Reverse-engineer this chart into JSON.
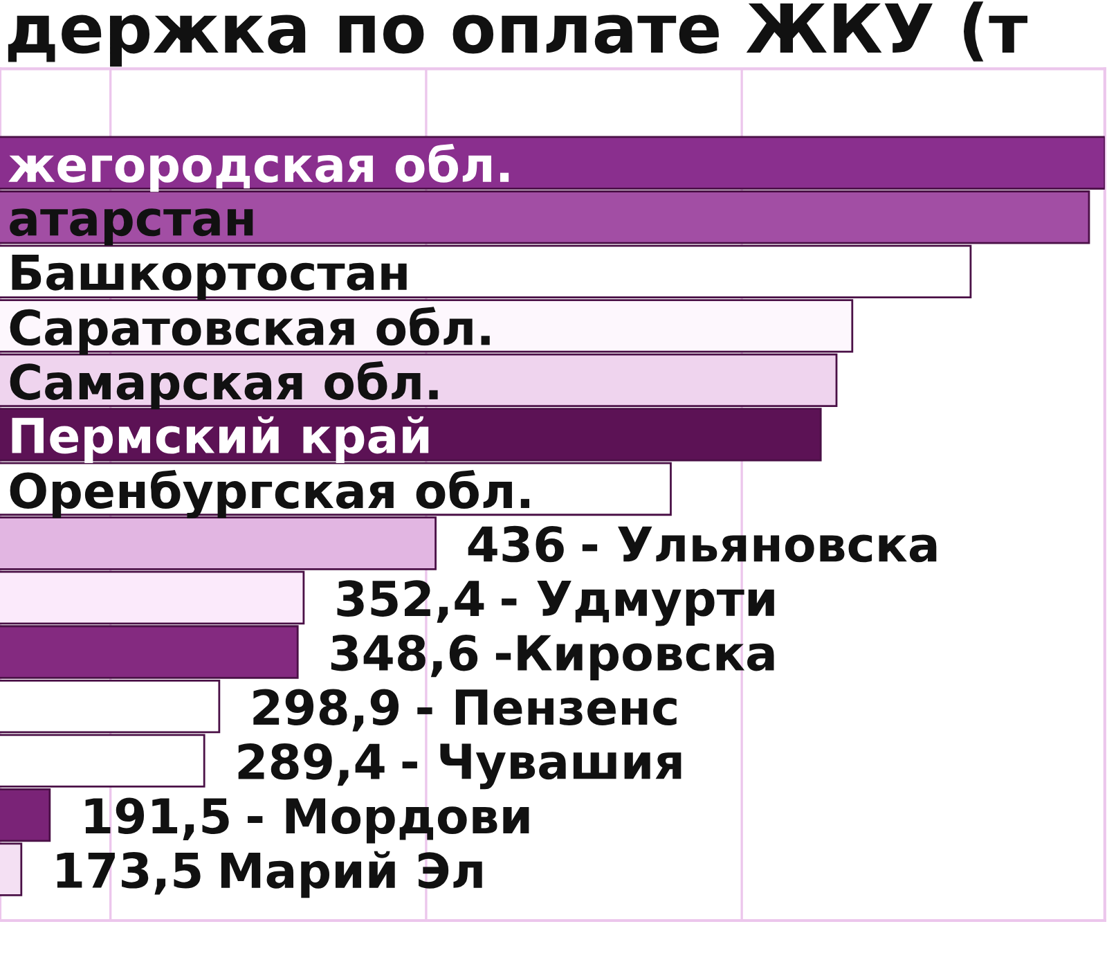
{
  "chart_data": {
    "type": "bar",
    "orientation": "horizontal",
    "title": "держка по оплате ЖКУ (т",
    "categories": [
      "жегородская обл.",
      "атарстан",
      "Башкортостан",
      "Саратовская обл.",
      "Самарская обл.",
      "Пермский край",
      "Оренбургская обл.",
      "- Ульяновска",
      "- Удмурти",
      "-Кировска",
      "- Пензенс",
      "- Чувашия",
      "- Мордови",
      "Марий Эл"
    ],
    "values": [
      860,
      850,
      775,
      700,
      690,
      680,
      585,
      436,
      352.4,
      348.6,
      298.9,
      289.4,
      191.5,
      173.5
    ],
    "value_labels": [
      null,
      null,
      null,
      null,
      null,
      null,
      null,
      "436",
      "352,4",
      "348,6",
      "298,9",
      "289,4",
      "191,5",
      "173,5"
    ],
    "colors": [
      "#8a2f8e",
      "#a24ea4",
      "#ffffff",
      "#fdf7fd",
      "#efd4ee",
      "#5c1255",
      "#ffffff",
      "#e2b6e2",
      "#fbeafb",
      "#842a80",
      "#ffffff",
      "#ffffff",
      "#7a2377",
      "#f4e0f3"
    ],
    "xlim": [
      160,
      860
    ],
    "xticks": [
      {
        "value": 230,
        "label": null
      },
      {
        "value": 430,
        "label": null
      },
      {
        "value": 630,
        "label": null
      }
    ],
    "grid": "x",
    "tick_labels": "y"
  }
}
